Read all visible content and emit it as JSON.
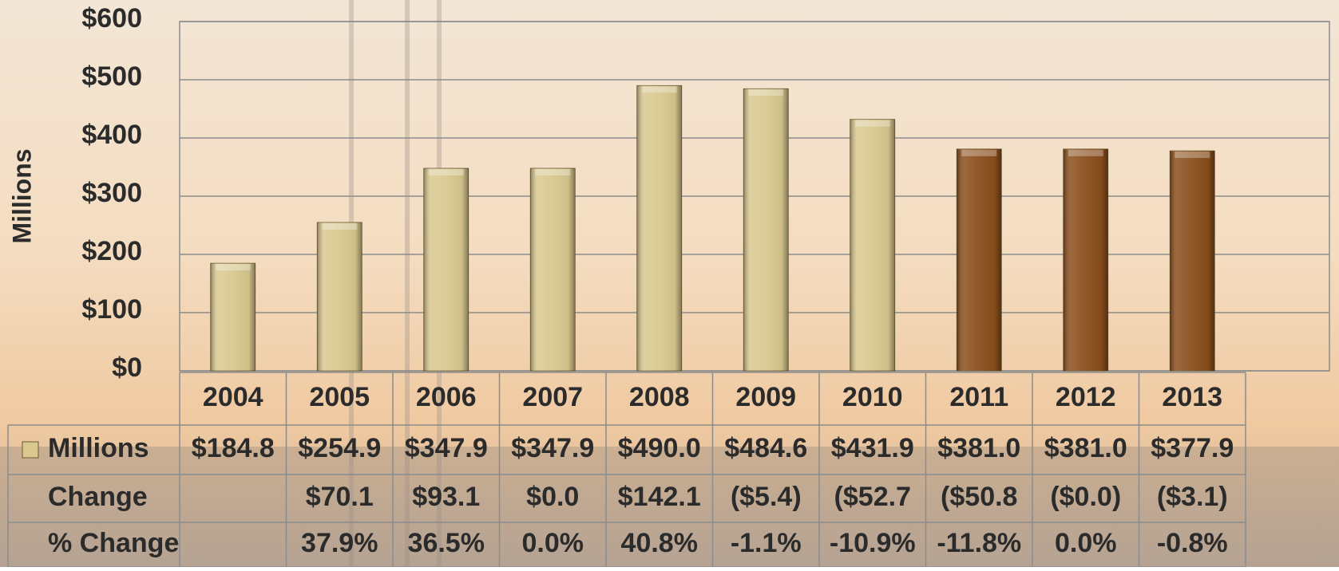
{
  "chart_data": {
    "type": "bar",
    "y_label": "Millions",
    "categories": [
      "2004",
      "2005",
      "2006",
      "2007",
      "2008",
      "2009",
      "2010",
      "2011",
      "2012",
      "2013"
    ],
    "series": [
      {
        "name": "Millions",
        "colors": [
          "#d9c88f",
          "#d9c88f",
          "#d9c88f",
          "#d9c88f",
          "#d9c88f",
          "#d9c88f",
          "#d9c88f",
          "#8a4e1c",
          "#8a4e1c",
          "#8a4e1c"
        ],
        "values": [
          184.8,
          254.9,
          347.9,
          347.9,
          490.0,
          484.6,
          431.9,
          381.0,
          381.0,
          377.9
        ],
        "value_labels": [
          "$184.8",
          "$254.9",
          "$347.9",
          "$347.9",
          "$490.0",
          "$484.6",
          "$431.9",
          "$381.0",
          "$381.0",
          "$377.9"
        ]
      }
    ],
    "ylim": [
      0,
      600
    ],
    "yticks": [
      {
        "value": 0,
        "label": "$0"
      },
      {
        "value": 100,
        "label": "$100"
      },
      {
        "value": 200,
        "label": "$200"
      },
      {
        "value": 300,
        "label": "$300"
      },
      {
        "value": 400,
        "label": "$400"
      },
      {
        "value": 500,
        "label": "$500"
      },
      {
        "value": 600,
        "label": "$600"
      }
    ],
    "grid": true,
    "table_rows": [
      {
        "label": "Change",
        "values": [
          null,
          "$70.1",
          "$93.1",
          "$0.0",
          "$142.1",
          "($5.4)",
          "($52.7",
          "($50.8",
          "($0.0)",
          "($3.1)"
        ]
      },
      {
        "label": "% Change",
        "values": [
          null,
          "37.9%",
          "36.5%",
          "0.0%",
          "40.8%",
          "-1.1%",
          "-10.9%",
          "-11.8%",
          "0.0%",
          "-0.8%"
        ]
      }
    ]
  }
}
